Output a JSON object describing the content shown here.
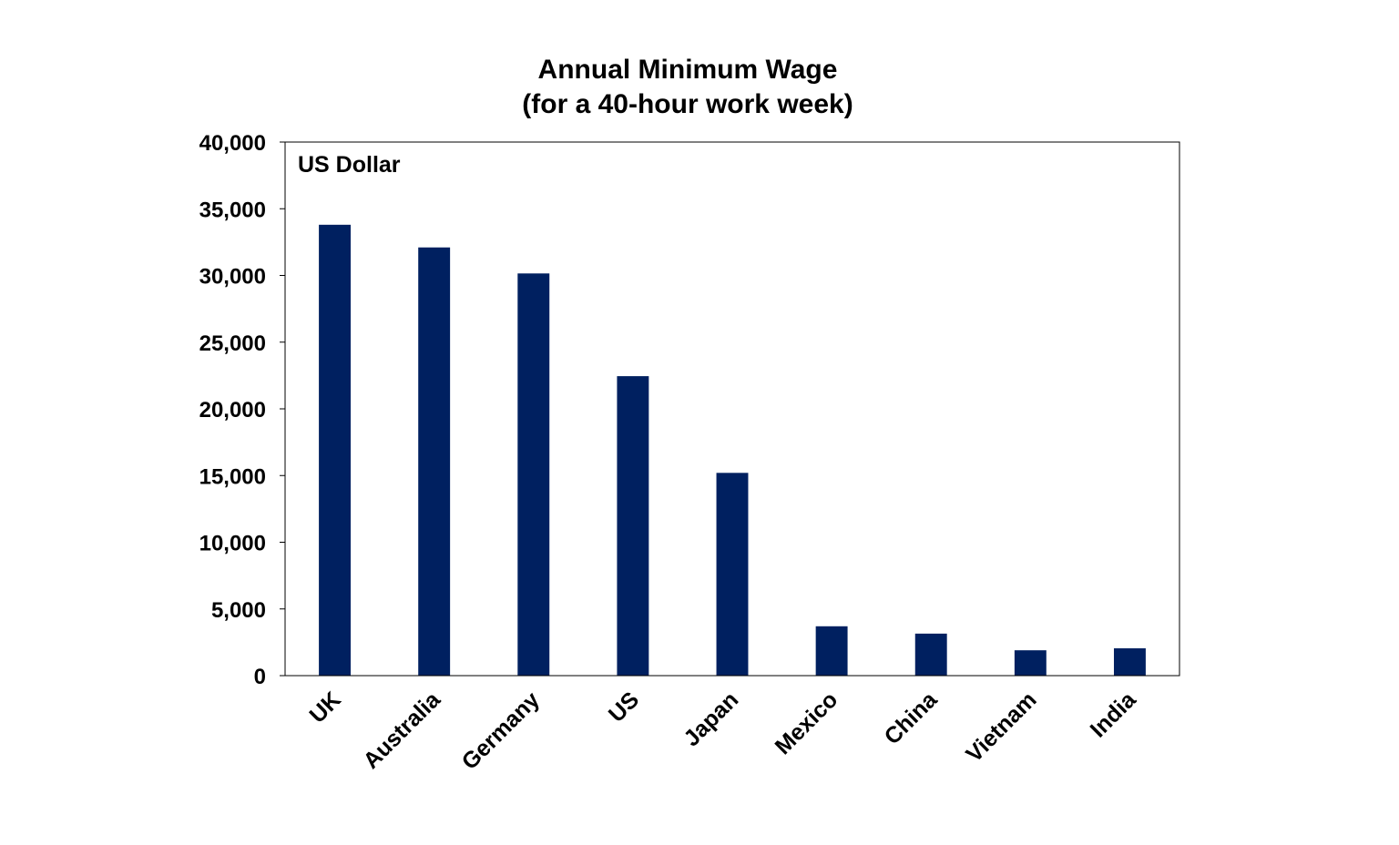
{
  "chart_data": {
    "type": "bar",
    "title": "Annual Minimum Wage",
    "subtitle": "(for a 40-hour work week)",
    "unit_label": "US Dollar",
    "xlabel": "",
    "ylabel": "",
    "categories": [
      "UK",
      "Australia",
      "Germany",
      "US",
      "Japan",
      "Mexico",
      "China",
      "Vietnam",
      "India"
    ],
    "values": [
      33800,
      32100,
      30150,
      22450,
      15200,
      3700,
      3150,
      1900,
      2050
    ],
    "ylim": [
      0,
      40000
    ],
    "yticks": [
      0,
      5000,
      10000,
      15000,
      20000,
      25000,
      30000,
      35000,
      40000
    ],
    "ytick_labels": [
      "0",
      "5,000",
      "10,000",
      "15,000",
      "20,000",
      "25,000",
      "30,000",
      "35,000",
      "40,000"
    ],
    "grid": false,
    "legend": "none",
    "bar_color": "#002060"
  }
}
